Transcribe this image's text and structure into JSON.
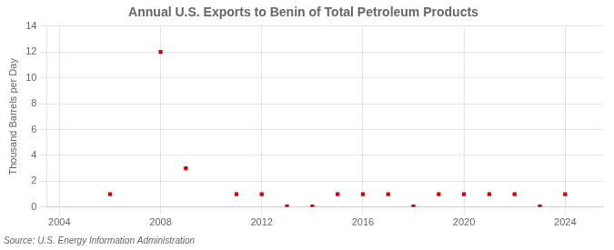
{
  "chart_data": {
    "type": "scatter",
    "title": "Annual U.S. Exports to Benin of Total Petroleum Products",
    "ylabel": "Thousand Barrels per Day",
    "annotation": "Source: U.S. Energy Information Administration",
    "x": [
      2006,
      2008,
      2009,
      2011,
      2012,
      2013,
      2014,
      2015,
      2016,
      2017,
      2018,
      2019,
      2020,
      2021,
      2022,
      2023,
      2024
    ],
    "values": [
      1,
      12,
      3,
      1,
      1,
      0.05,
      0.05,
      1,
      1,
      1,
      0.05,
      1,
      1,
      1,
      1,
      0.05,
      1
    ],
    "color": "#cc0000",
    "marker": "square",
    "xlim": [
      2003.5,
      2025.5
    ],
    "xticks": [
      2004,
      2008,
      2012,
      2016,
      2020,
      2024
    ],
    "ylim": [
      0,
      14
    ],
    "yticks": [
      0,
      2,
      4,
      6,
      8,
      10,
      12,
      14
    ],
    "grid": true
  }
}
